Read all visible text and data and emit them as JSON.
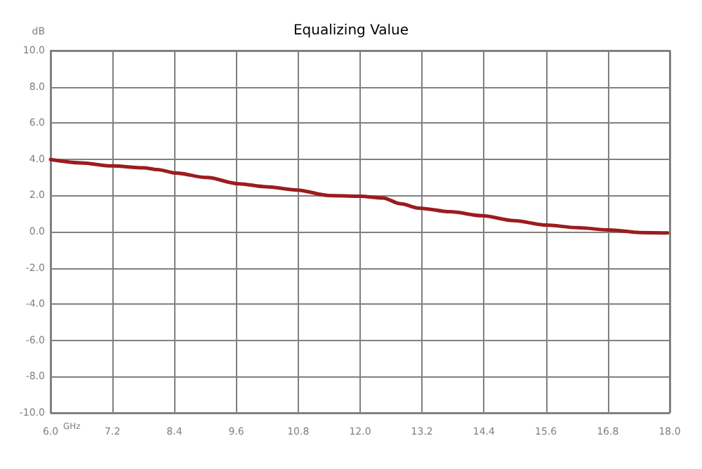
{
  "chart_data": {
    "type": "line",
    "title": "Equalizing Value",
    "xlabel": "GHz",
    "ylabel": "dB",
    "x": [
      6.0,
      6.58,
      7.2,
      7.8,
      8.07,
      8.42,
      9.03,
      9.64,
      10.17,
      10.78,
      11.39,
      12.0,
      12.44,
      12.79,
      13.14,
      13.75,
      14.37,
      14.98,
      15.6,
      16.21,
      16.82,
      17.43,
      17.96
    ],
    "series": [
      {
        "color": "#9b1c1f",
        "values": [
          3.98,
          3.8,
          3.63,
          3.53,
          3.43,
          3.24,
          2.99,
          2.65,
          2.48,
          2.3,
          2.0,
          1.96,
          1.86,
          1.54,
          1.3,
          1.1,
          0.88,
          0.61,
          0.37,
          0.22,
          0.1,
          -0.05,
          -0.07
        ]
      }
    ],
    "xlim": [
      6,
      18
    ],
    "xticks": [
      {
        "value": 6,
        "label": "6.0"
      },
      7.2,
      8.4,
      9.6,
      10.8,
      {
        "value": 12,
        "label": "12.0"
      },
      13.2,
      14.4,
      15.6,
      16.8,
      {
        "value": 18,
        "label": "18.0"
      }
    ],
    "ylim": [
      -10,
      10
    ],
    "yticks": [
      {
        "value": -10,
        "label": "-10.0"
      },
      {
        "value": -8,
        "label": "-8.0"
      },
      {
        "value": -6,
        "label": "-6.0"
      },
      {
        "value": -4,
        "label": "-4.0"
      },
      {
        "value": -2,
        "label": "-2.0"
      },
      {
        "value": 0,
        "label": "0.0"
      },
      {
        "value": 2,
        "label": "2.0"
      },
      {
        "value": 4,
        "label": "4.0"
      },
      {
        "value": 6,
        "label": "6.0"
      },
      {
        "value": 8,
        "label": "8.0"
      },
      {
        "value": 10,
        "label": "10.0"
      }
    ],
    "grid": true,
    "marker": "none",
    "line_style": "solid"
  }
}
